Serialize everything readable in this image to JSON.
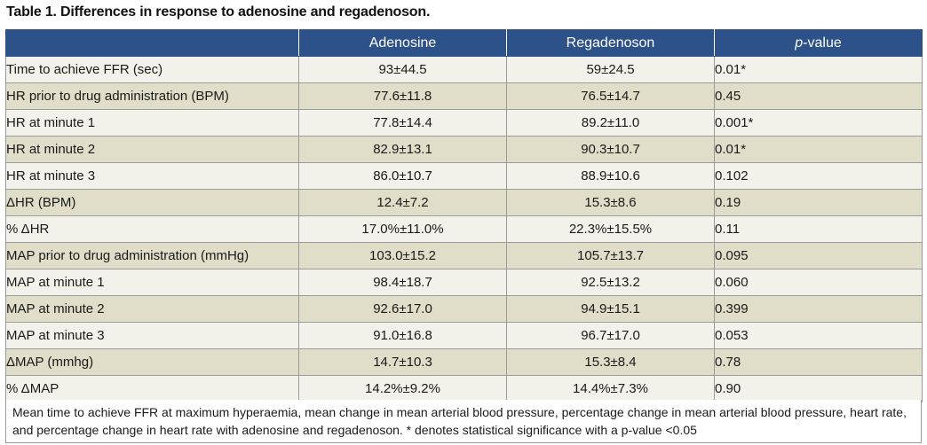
{
  "title": "Table 1. Differences in response to adenosine and regadenoson.",
  "table": {
    "headers": [
      "",
      "Adenosine",
      "Regadenoson",
      "-value"
    ],
    "header_p_prefix": "p",
    "rows": [
      [
        "Time to achieve FFR (sec)",
        "93±44.5",
        "59±24.5",
        "0.01*"
      ],
      [
        "HR prior to drug administration (BPM)",
        "77.6±11.8",
        "76.5±14.7",
        "0.45"
      ],
      [
        "HR at minute 1",
        "77.8±14.4",
        "89.2±11.0",
        "0.001*"
      ],
      [
        "HR at minute 2",
        "82.9±13.1",
        "90.3±10.7",
        "0.01*"
      ],
      [
        "HR at minute 3",
        "86.0±10.7",
        "88.9±10.6",
        "0.102"
      ],
      [
        "ΔHR (BPM)",
        "12.4±7.2",
        "15.3±8.6",
        "0.19"
      ],
      [
        "% ΔHR",
        "17.0%±11.0%",
        "22.3%±15.5%",
        "0.11"
      ],
      [
        "MAP prior to drug administration (mmHg)",
        "103.0±15.2",
        "105.7±13.7",
        "0.095"
      ],
      [
        "MAP at minute 1",
        "98.4±18.7",
        "92.5±13.2",
        "0.060"
      ],
      [
        "MAP at minute 2",
        "92.6±17.0",
        "94.9±15.1",
        "0.399"
      ],
      [
        "MAP at minute 3",
        "91.0±16.8",
        "96.7±17.0",
        "0.053"
      ],
      [
        "ΔMAP (mmhg)",
        "14.7±10.3",
        "15.3±8.4",
        "0.78"
      ],
      [
        "% ΔMAP",
        "14.2%±9.2%",
        "14.4%±7.3%",
        "0.90"
      ]
    ]
  },
  "footnote": "Mean time to achieve FFR at maximum hyperaemia, mean change in mean arterial blood pressure, percentage change in mean arterial blood pressure, heart rate, and percentage change in heart rate with adenosine and regadenoson. * denotes statistical significance with a p-value <0.05",
  "colors": {
    "header_bg": "#2d5189",
    "row_light": "#f3f2ea",
    "row_dark": "#e0dec8"
  }
}
